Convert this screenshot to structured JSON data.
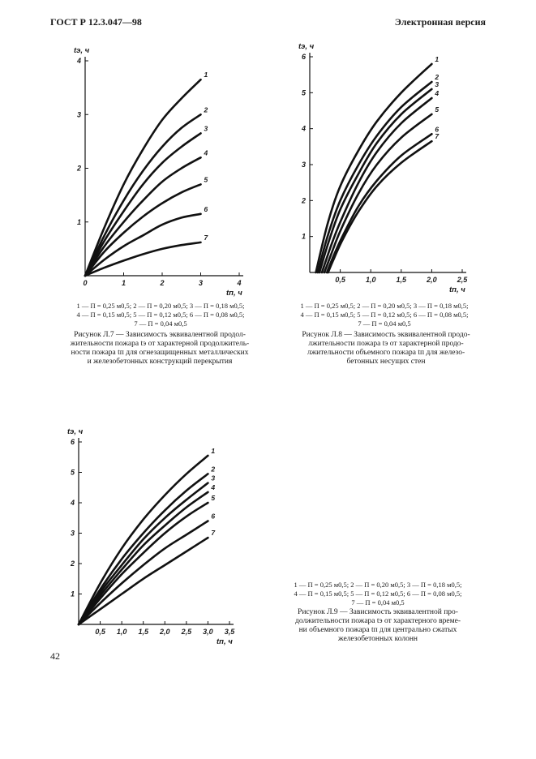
{
  "header": {
    "left": "ГОСТ Р 12.3.047—98",
    "right": "Электронная версия"
  },
  "page_number": "42",
  "figures": [
    {
      "legend": [
        "1 — П = 0,25 м0,5; 2 — П = 0,20 м0,5; 3 — П = 0,18 м0,5;",
        "4 — П = 0,15 м0,5; 5 — П = 0,12 м0,5; 6 — П = 0,08 м0,5;",
        "7 — П = 0,04 м0,5"
      ],
      "caption": [
        "Рисунок Л.7 — Зависимость эквивалентной продол-",
        "жительности пожара tэ от характерной продолжитель-",
        "ности пожара tп для огнезащищенных металлических",
        "и железобетонных конструкций перекрытия"
      ]
    },
    {
      "legend": [
        "1 — П = 0,25 м0,5; 2 — П = 0,20 м0,5; 3 — П = 0,18 м0,5;",
        "4 — П = 0,15 м0,5; 5 — П = 0,12 м0,5; 6 — П = 0,08 м0,5;",
        "7 — П = 0,04 м0,5"
      ],
      "caption": [
        "Рисунок Л.8 — Зависимость эквивалентной продо-",
        "лжительности пожара tэ от характерной продо-",
        "лжительности объемного пожара tп для железо-",
        "бетонных несущих стен"
      ]
    },
    {
      "legend": [
        "1 — П = 0,25 м0,5; 2 — П = 0,20 м0,5; 3 — П = 0,18 м0,5;",
        "4 — П = 0,15 м0,5; 5 — П = 0,12 м0,5; 6 — П = 0,08 м0,5;",
        "7 — П = 0,04 м0,5"
      ],
      "caption": [
        "Рисунок Л.9 — Зависимость эквивалентной про-",
        "должительности пожара tэ от характерного време-",
        "ни объемного пожара tп для центрально сжатых",
        "железобетонных колонн"
      ]
    }
  ],
  "chart_data": [
    {
      "type": "line",
      "ylabel": "tэ, ч",
      "xlabel": "tп, ч",
      "xlim": [
        0,
        4
      ],
      "ylim": [
        0,
        4
      ],
      "xticks": [
        "0",
        "1",
        "2",
        "3",
        "4"
      ],
      "yticks": [
        "1",
        "2",
        "3",
        "4"
      ],
      "series": [
        {
          "name": "1",
          "x": [
            0,
            0.5,
            1,
            1.5,
            2,
            2.5,
            3
          ],
          "values": [
            0,
            0.9,
            1.7,
            2.35,
            2.9,
            3.3,
            3.65
          ]
        },
        {
          "name": "2",
          "x": [
            0,
            0.5,
            1,
            1.5,
            2,
            2.5,
            3
          ],
          "values": [
            0,
            0.75,
            1.4,
            1.95,
            2.4,
            2.75,
            3.0
          ]
        },
        {
          "name": "3",
          "x": [
            0,
            0.5,
            1,
            1.5,
            2,
            2.5,
            3
          ],
          "values": [
            0,
            0.65,
            1.2,
            1.7,
            2.1,
            2.4,
            2.65
          ]
        },
        {
          "name": "4",
          "x": [
            0,
            0.5,
            1,
            1.5,
            2,
            2.5,
            3
          ],
          "values": [
            0,
            0.55,
            1.0,
            1.4,
            1.75,
            2.0,
            2.2
          ]
        },
        {
          "name": "5",
          "x": [
            0,
            0.5,
            1,
            1.5,
            2,
            2.5,
            3
          ],
          "values": [
            0,
            0.45,
            0.8,
            1.1,
            1.35,
            1.55,
            1.7
          ]
        },
        {
          "name": "6",
          "x": [
            0,
            0.5,
            1,
            1.5,
            2,
            2.5,
            3
          ],
          "values": [
            0,
            0.3,
            0.55,
            0.75,
            0.95,
            1.08,
            1.15
          ]
        },
        {
          "name": "7",
          "x": [
            0,
            0.5,
            1,
            1.5,
            2,
            2.5,
            3
          ],
          "values": [
            0,
            0.15,
            0.28,
            0.4,
            0.5,
            0.57,
            0.62
          ]
        }
      ]
    },
    {
      "type": "line",
      "ylabel": "tэ, ч",
      "xlabel": "tп, ч",
      "xlim": [
        0,
        2.5
      ],
      "ylim": [
        0,
        6
      ],
      "xticks": [
        "0,5",
        "1,0",
        "1,5",
        "2,0",
        "2,5"
      ],
      "yticks": [
        "1",
        "2",
        "3",
        "4",
        "5",
        "6"
      ],
      "series": [
        {
          "name": "1",
          "x": [
            0.1,
            0.3,
            0.5,
            0.8,
            1.1,
            1.5,
            2.0
          ],
          "values": [
            0,
            1.4,
            2.4,
            3.4,
            4.2,
            5.0,
            5.8
          ]
        },
        {
          "name": "2",
          "x": [
            0.13,
            0.3,
            0.5,
            0.8,
            1.1,
            1.5,
            2.0
          ],
          "values": [
            0,
            1.05,
            2.0,
            3.0,
            3.8,
            4.6,
            5.3
          ]
        },
        {
          "name": "3",
          "x": [
            0.16,
            0.3,
            0.5,
            0.8,
            1.1,
            1.5,
            2.0
          ],
          "values": [
            0,
            0.8,
            1.75,
            2.75,
            3.6,
            4.4,
            5.1
          ]
        },
        {
          "name": "4",
          "x": [
            0.2,
            0.35,
            0.5,
            0.8,
            1.1,
            1.5,
            2.0
          ],
          "values": [
            0,
            0.75,
            1.4,
            2.5,
            3.35,
            4.15,
            4.85
          ]
        },
        {
          "name": "5",
          "x": [
            0.24,
            0.35,
            0.5,
            0.8,
            1.1,
            1.5,
            2.0
          ],
          "values": [
            0,
            0.5,
            1.15,
            2.2,
            3.0,
            3.75,
            4.4
          ]
        },
        {
          "name": "6",
          "x": [
            0.28,
            0.4,
            0.55,
            0.8,
            1.1,
            1.5,
            2.0
          ],
          "values": [
            0,
            0.5,
            1.05,
            1.85,
            2.55,
            3.25,
            3.85
          ]
        },
        {
          "name": "7",
          "x": [
            0.3,
            0.4,
            0.55,
            0.8,
            1.1,
            1.5,
            2.0
          ],
          "values": [
            0,
            0.4,
            0.95,
            1.7,
            2.4,
            3.05,
            3.65
          ]
        }
      ]
    },
    {
      "type": "line",
      "ylabel": "tэ, ч",
      "xlabel": "tп, ч",
      "xlim": [
        0,
        3.5
      ],
      "ylim": [
        0,
        6
      ],
      "xticks": [
        "0,5",
        "1,0",
        "1,5",
        "2,0",
        "2,5",
        "3,0",
        "3,5"
      ],
      "yticks": [
        "1",
        "2",
        "3",
        "4",
        "5",
        "6"
      ],
      "series": [
        {
          "name": "1",
          "x": [
            0,
            0.5,
            1,
            1.5,
            2,
            2.5,
            3
          ],
          "values": [
            0,
            1.35,
            2.5,
            3.45,
            4.25,
            4.95,
            5.55
          ]
        },
        {
          "name": "2",
          "x": [
            0,
            0.5,
            1,
            1.5,
            2,
            2.5,
            3
          ],
          "values": [
            0,
            1.15,
            2.15,
            3.0,
            3.75,
            4.4,
            4.95
          ]
        },
        {
          "name": "3",
          "x": [
            0,
            0.5,
            1,
            1.5,
            2,
            2.5,
            3
          ],
          "values": [
            0,
            1.05,
            1.95,
            2.8,
            3.5,
            4.1,
            4.65
          ]
        },
        {
          "name": "4",
          "x": [
            0,
            0.5,
            1,
            1.5,
            2,
            2.5,
            3
          ],
          "values": [
            0,
            0.95,
            1.8,
            2.6,
            3.25,
            3.85,
            4.35
          ]
        },
        {
          "name": "5",
          "x": [
            0,
            0.5,
            1,
            1.5,
            2,
            2.5,
            3
          ],
          "values": [
            0,
            0.85,
            1.65,
            2.35,
            3.0,
            3.55,
            4.0
          ]
        },
        {
          "name": "6",
          "x": [
            0,
            0.5,
            1,
            1.5,
            2,
            2.5,
            3
          ],
          "values": [
            0,
            0.7,
            1.35,
            1.95,
            2.5,
            2.95,
            3.4
          ]
        },
        {
          "name": "7",
          "x": [
            0,
            0.5,
            1,
            1.5,
            2,
            2.5,
            3
          ],
          "values": [
            0,
            0.5,
            1.0,
            1.5,
            1.95,
            2.4,
            2.85
          ]
        }
      ]
    }
  ]
}
